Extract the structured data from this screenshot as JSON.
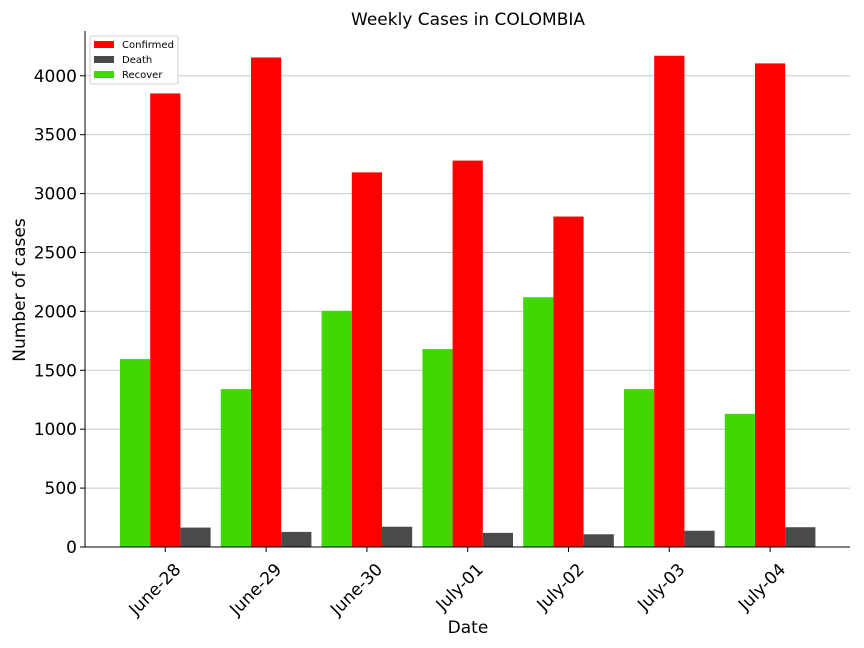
{
  "chart_data": {
    "type": "bar",
    "title": "Weekly Cases in COLOMBIA",
    "xlabel": "Date",
    "ylabel": "Number of cases",
    "categories": [
      "June-28",
      "June-29",
      "June-30",
      "July-01",
      "July-02",
      "July-03",
      "July-04"
    ],
    "series": [
      {
        "name": "Recover",
        "color": "#3fd803",
        "values": [
          1595,
          1340,
          2005,
          1680,
          2120,
          1340,
          1130
        ]
      },
      {
        "name": "Confirmed",
        "color": "#ff0000",
        "values": [
          3850,
          4155,
          3180,
          3280,
          2805,
          4170,
          4105
        ]
      },
      {
        "name": "Death",
        "color": "#4a4a4a",
        "values": [
          165,
          128,
          172,
          120,
          108,
          138,
          168
        ]
      }
    ],
    "legend_order": [
      "Confirmed",
      "Death",
      "Recover"
    ],
    "ylim": [
      0,
      4380
    ],
    "yticks": [
      0,
      500,
      1000,
      1500,
      2000,
      2500,
      3000,
      3500,
      4000
    ],
    "grid": "y",
    "legend_position": "top-left"
  }
}
